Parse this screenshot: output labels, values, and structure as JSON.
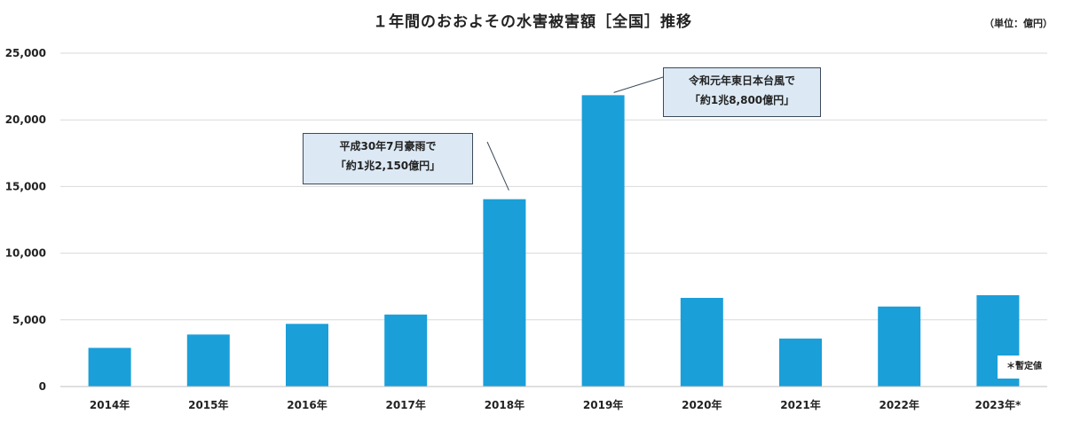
{
  "chart_data": {
    "type": "bar",
    "title": "１年間のおおよその水害被害額［全国］推移",
    "unit_label": "（単位：億円）",
    "categories": [
      "2014年",
      "2015年",
      "2016年",
      "2017年",
      "2018年",
      "2019年",
      "2020年",
      "2021年",
      "2022年",
      "2023年*"
    ],
    "values": [
      2900,
      3900,
      4700,
      5400,
      14050,
      21850,
      6650,
      3600,
      6000,
      6850
    ],
    "ylim": [
      0,
      25000
    ],
    "yticks": [
      0,
      5000,
      10000,
      15000,
      20000,
      25000
    ],
    "ytick_labels": [
      "0",
      "5,000",
      "10,000",
      "15,000",
      "20,000",
      "25,000"
    ],
    "grid": true,
    "bar_color": "#1a9fd9",
    "annotations": [
      {
        "category": "2018年",
        "line1": "平成30年7月豪雨で",
        "line2": "「約1兆2,150億円」"
      },
      {
        "category": "2019年",
        "line1": "令和元年東日本台風で",
        "line2": "「約1兆8,800億円」"
      }
    ],
    "note": "＊暫定値"
  }
}
